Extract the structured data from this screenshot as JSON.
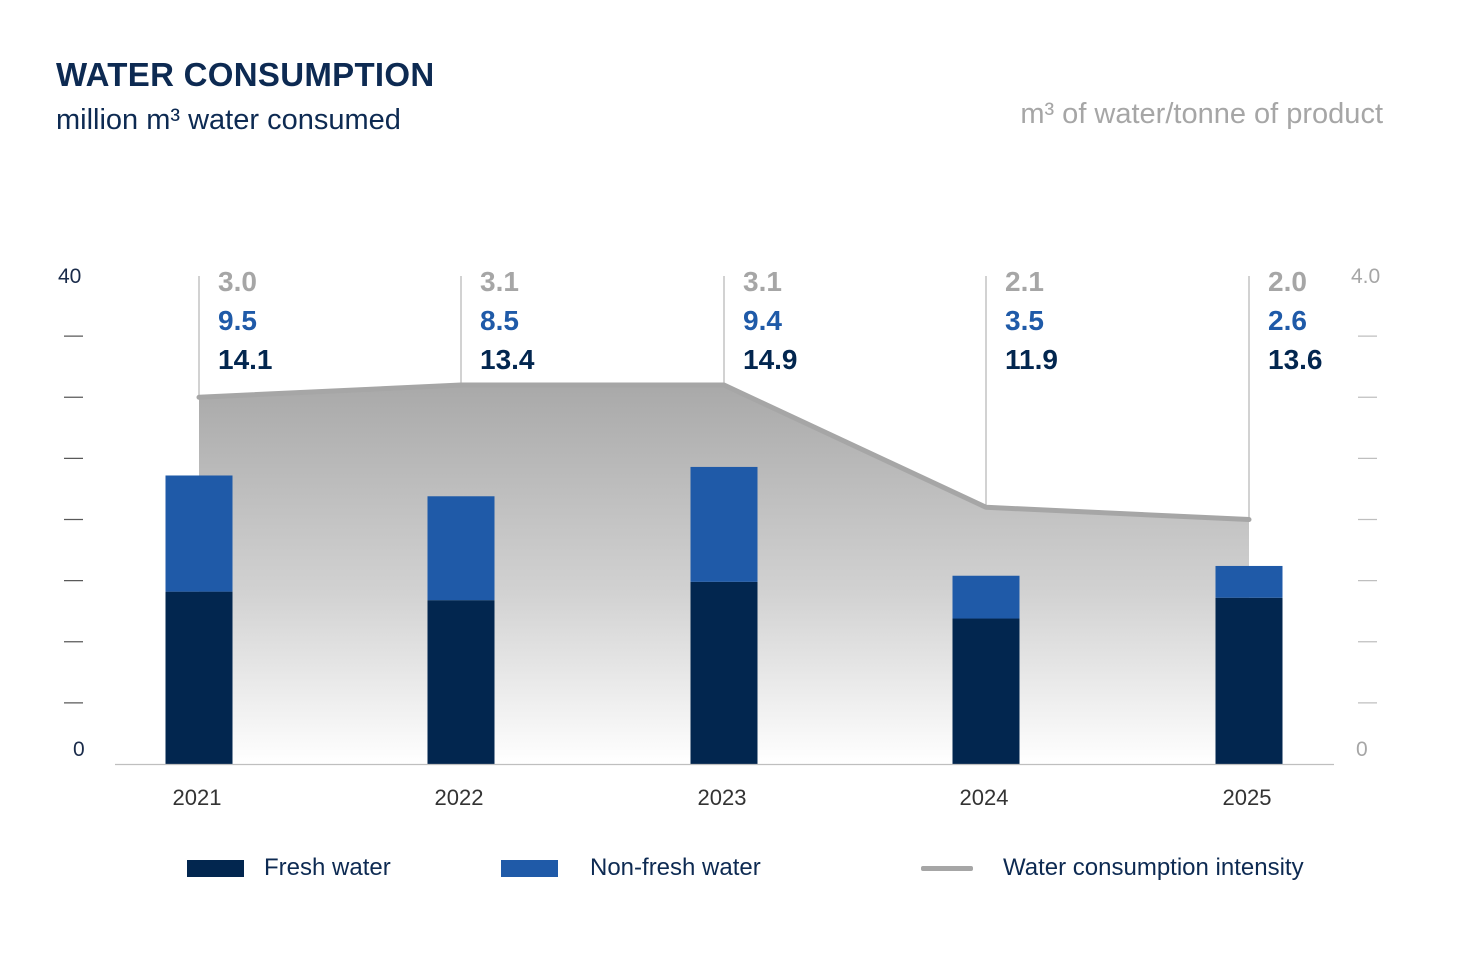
{
  "header": {
    "title": "WATER CONSUMPTION",
    "subtitle": "million m³ water consumed",
    "right_axis_title": "m³ of water/tonne of product"
  },
  "legend": {
    "fresh": "Fresh water",
    "nonfresh": "Non-fresh water",
    "intensity": "Water consumption intensity"
  },
  "colors": {
    "fresh": "#02264f",
    "nonfresh": "#1f5aa8",
    "intensity": "#a6a6a6",
    "title": "#0d2a52",
    "axis": "#a6a6a6"
  },
  "chart_data": {
    "type": "bar",
    "stacked": true,
    "title": "WATER CONSUMPTION",
    "subtitle": "million m³ water consumed",
    "categories": [
      "2021",
      "2022",
      "2023",
      "2024",
      "2025"
    ],
    "series": [
      {
        "name": "Fresh water",
        "values": [
          14.1,
          13.4,
          14.9,
          11.9,
          13.6
        ]
      },
      {
        "name": "Non-fresh water",
        "values": [
          9.5,
          8.5,
          9.4,
          3.5,
          2.6
        ]
      },
      {
        "name": "Water consumption intensity",
        "type": "area-line",
        "axis": "right",
        "values": [
          3.0,
          3.1,
          3.1,
          2.1,
          2.0
        ]
      }
    ],
    "intensity_labels": [
      "3.0",
      "3.1",
      "3.1",
      "2.1",
      "2.0"
    ],
    "nonfresh_labels": [
      "9.5",
      "8.5",
      "9.4",
      "3.5",
      "2.6"
    ],
    "fresh_labels": [
      "14.1",
      "13.4",
      "14.9",
      "11.9",
      "13.6"
    ],
    "left_axis": {
      "min": 0,
      "max": 40,
      "min_label": "0",
      "max_label": "40"
    },
    "right_axis": {
      "min": 0,
      "max": 4.0,
      "min_label": "0",
      "max_label": "4.0",
      "title": "m³ of water/tonne of product"
    },
    "legend_position": "bottom"
  }
}
